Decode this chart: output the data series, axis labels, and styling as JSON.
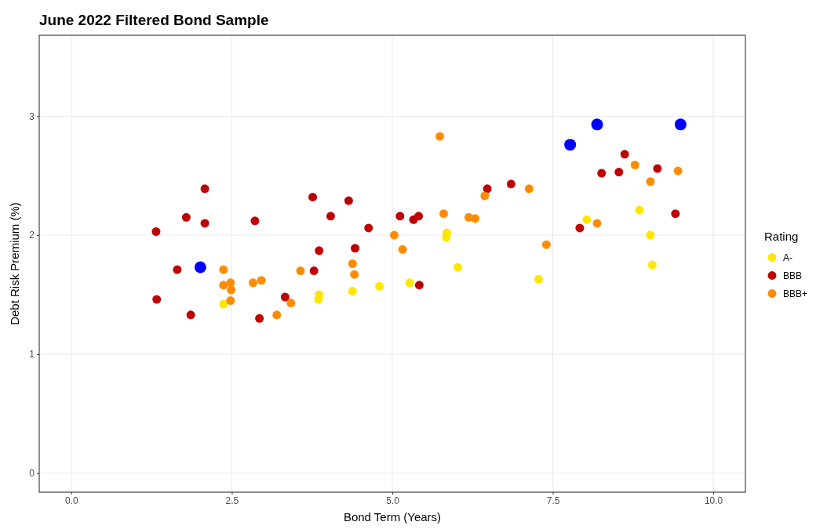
{
  "chart_data": {
    "type": "scatter",
    "title": "June 2022 Filtered Bond Sample",
    "xlabel": "Bond Term (Years)",
    "ylabel": "Debt Risk Premium (%)",
    "legend_title": "Rating",
    "legend": "right",
    "grid": true,
    "marker": "circle",
    "xlim": [
      -0.5,
      10.5
    ],
    "ylim": [
      -0.16,
      3.68
    ],
    "xticks": [
      {
        "value": 0,
        "label": "0.0"
      },
      {
        "value": 2.5,
        "label": "2.5"
      },
      {
        "value": 5,
        "label": "5.0"
      },
      {
        "value": 7.5,
        "label": "7.5"
      },
      {
        "value": 10,
        "label": "10.0"
      }
    ],
    "yticks": [
      0,
      1,
      2,
      3
    ],
    "series": [
      {
        "name": "A-",
        "color": "#ffe600",
        "x": [
          2.37,
          3.86,
          3.85,
          4.38,
          4.8,
          5.27,
          5.85,
          5.84,
          6.02,
          7.28,
          8.03,
          8.85,
          9.02,
          9.05
        ],
        "values": [
          1.42,
          1.5,
          1.46,
          1.53,
          1.57,
          1.6,
          2.02,
          1.98,
          1.73,
          1.63,
          2.13,
          2.21,
          2.0,
          1.75
        ]
      },
      {
        "name": "BBB",
        "color": "#c00000",
        "x": [
          1.32,
          1.33,
          1.65,
          1.79,
          1.86,
          2.08,
          2.08,
          2.86,
          2.93,
          3.33,
          3.76,
          3.78,
          3.86,
          4.04,
          4.32,
          4.42,
          4.63,
          5.12,
          5.33,
          5.41,
          5.42,
          6.48,
          6.85,
          7.92,
          8.26,
          8.53,
          8.62,
          9.13,
          9.41
        ],
        "values": [
          2.03,
          1.46,
          1.71,
          2.15,
          1.33,
          2.39,
          2.1,
          2.12,
          1.3,
          1.48,
          2.32,
          1.7,
          1.87,
          2.16,
          2.29,
          1.89,
          2.06,
          2.16,
          2.13,
          2.16,
          1.58,
          2.39,
          2.43,
          2.06,
          2.52,
          2.53,
          2.68,
          2.56,
          2.18
        ]
      },
      {
        "name": "BBB+",
        "color": "#ff8c00",
        "x": [
          2.37,
          2.37,
          2.48,
          2.49,
          2.48,
          2.83,
          2.96,
          3.2,
          3.42,
          3.57,
          4.38,
          4.41,
          5.03,
          5.16,
          5.74,
          5.8,
          6.19,
          6.29,
          6.44,
          7.13,
          7.4,
          8.19,
          8.78,
          9.02,
          9.45
        ],
        "values": [
          1.71,
          1.58,
          1.6,
          1.54,
          1.45,
          1.6,
          1.62,
          1.33,
          1.43,
          1.7,
          1.76,
          1.67,
          2.0,
          1.88,
          2.83,
          2.18,
          2.15,
          2.14,
          2.33,
          2.39,
          1.92,
          2.1,
          2.59,
          2.45,
          2.54
        ]
      },
      {
        "color": "#0000ff",
        "x": [
          2.01,
          7.77,
          8.19,
          9.49
        ],
        "values": [
          1.73,
          2.76,
          2.93,
          2.93
        ]
      }
    ]
  }
}
